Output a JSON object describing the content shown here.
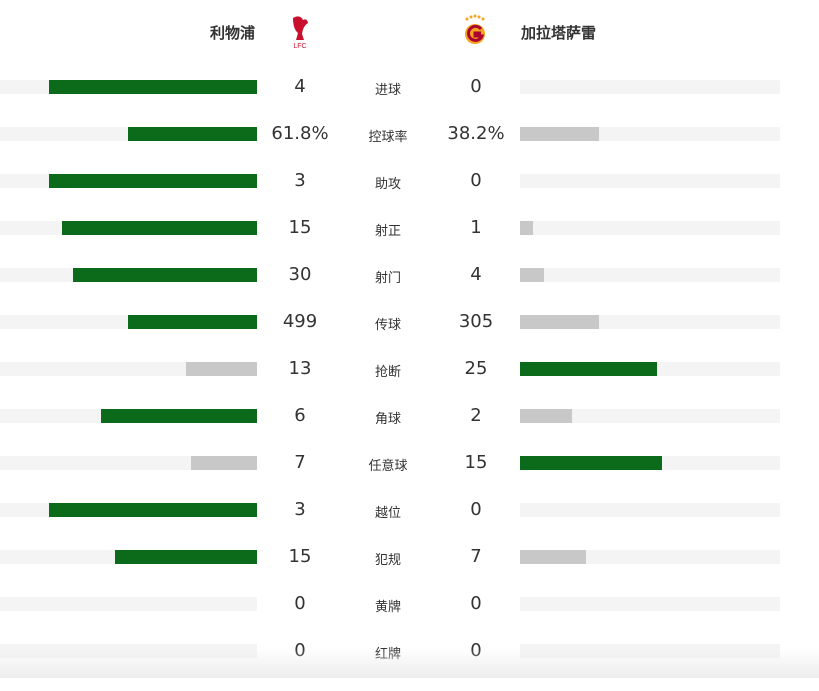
{
  "header": {
    "home_team": "利物浦",
    "away_team": "加拉塔萨雷"
  },
  "stats": [
    {
      "label": "进球",
      "home": 4,
      "away": 0
    },
    {
      "label": "控球率",
      "home": 61.8,
      "home_label": "61.8%",
      "away": 38.2,
      "away_label": "38.2%"
    },
    {
      "label": "助攻",
      "home": 3,
      "away": 0
    },
    {
      "label": "射正",
      "home": 15,
      "away": 1
    },
    {
      "label": "射门",
      "home": 30,
      "away": 4
    },
    {
      "label": "传球",
      "home": 499,
      "away": 305
    },
    {
      "label": "抢断",
      "home": 13,
      "away": 25
    },
    {
      "label": "角球",
      "home": 6,
      "away": 2
    },
    {
      "label": "任意球",
      "home": 7,
      "away": 15
    },
    {
      "label": "越位",
      "home": 3,
      "away": 0
    },
    {
      "label": "犯规",
      "home": 15,
      "away": 7
    },
    {
      "label": "黄牌",
      "home": 0,
      "away": 0
    },
    {
      "label": "红牌",
      "home": 0,
      "away": 0
    }
  ]
}
